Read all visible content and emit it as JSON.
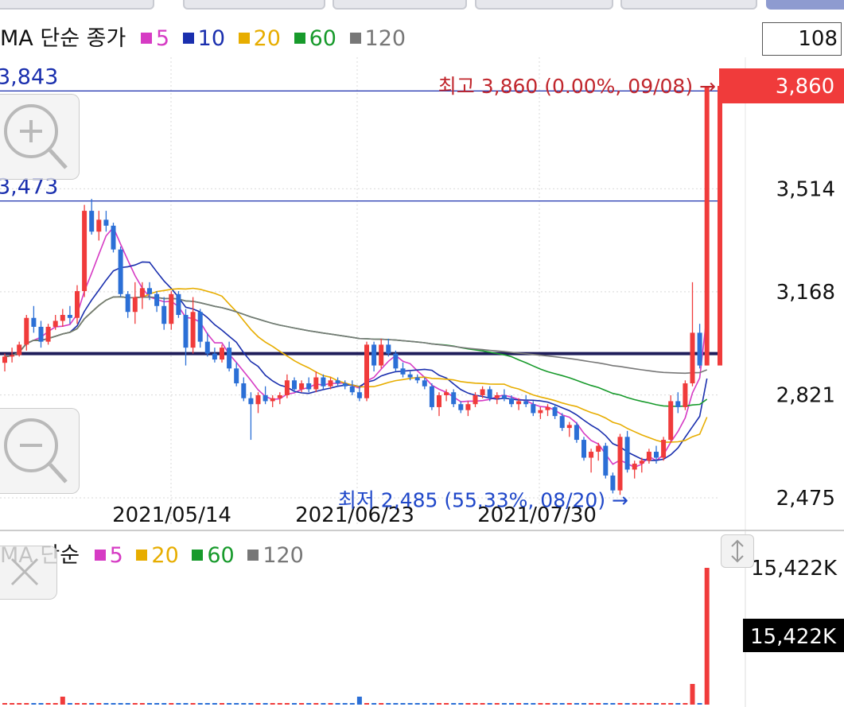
{
  "main_legend": {
    "title": "MA 단순 종가",
    "items": [
      {
        "label": "5",
        "color": "#d63bc4"
      },
      {
        "label": "10",
        "color": "#1a2fae"
      },
      {
        "label": "20",
        "color": "#e7ad00"
      },
      {
        "label": "60",
        "color": "#179a2b"
      },
      {
        "label": "120",
        "color": "#777777"
      }
    ]
  },
  "volume_legend": {
    "title": "MA 단순",
    "items": [
      {
        "label": "5",
        "color": "#d63bc4"
      },
      {
        "label": "20",
        "color": "#e7ad00"
      },
      {
        "label": "60",
        "color": "#179a2b"
      },
      {
        "label": "120",
        "color": "#777777"
      }
    ]
  },
  "count_box": "108",
  "icons": [
    "zoom-in-icon",
    "zoom-out-icon",
    "close-icon",
    "scroll-updown-icon"
  ],
  "chart_data": [
    {
      "type": "candlestick",
      "ylim": [
        2470,
        3880
      ],
      "y_ticks": [
        "2,475",
        "2,821",
        "3,168",
        "3,514"
      ],
      "x_tick_labels": [
        "2021/05/14",
        "2021/06/23",
        "2021/07/30"
      ],
      "current_price_label": "3,860",
      "high_annotation": "최고 3,860 (0.00%, 09/08) →",
      "low_annotation": "최저 2,485 (55.33%, 08/20) →",
      "left_price_labels": [
        "3,843",
        "3,473"
      ],
      "hlines": [
        {
          "value": 3843,
          "color": "#1a2fae"
        },
        {
          "value": 3473,
          "color": "#1a2fae"
        },
        {
          "value": 2960,
          "color": "#1f1d5a"
        }
      ],
      "candles": [
        [
          2929,
          2960,
          2900,
          2950
        ],
        [
          2950,
          2980,
          2930,
          2955
        ],
        [
          2955,
          3000,
          2950,
          2990
        ],
        [
          2990,
          3090,
          2970,
          3080
        ],
        [
          3080,
          3120,
          3030,
          3050
        ],
        [
          3050,
          3070,
          2980,
          3000
        ],
        [
          3000,
          3060,
          2990,
          3050
        ],
        [
          3050,
          3090,
          3040,
          3070
        ],
        [
          3070,
          3110,
          3050,
          3090
        ],
        [
          3090,
          3120,
          3060,
          3080
        ],
        [
          3080,
          3190,
          3060,
          3170
        ],
        [
          3170,
          3460,
          3150,
          3440
        ],
        [
          3440,
          3480,
          3360,
          3370
        ],
        [
          3370,
          3440,
          3340,
          3410
        ],
        [
          3410,
          3440,
          3370,
          3390
        ],
        [
          3390,
          3400,
          3300,
          3310
        ],
        [
          3310,
          3320,
          3150,
          3160
        ],
        [
          3160,
          3170,
          3080,
          3100
        ],
        [
          3100,
          3200,
          3060,
          3150
        ],
        [
          3150,
          3200,
          3110,
          3180
        ],
        [
          3180,
          3200,
          3140,
          3160
        ],
        [
          3160,
          3170,
          3100,
          3120
        ],
        [
          3120,
          3150,
          3040,
          3060
        ],
        [
          3060,
          3170,
          3040,
          3160
        ],
        [
          3160,
          3170,
          3080,
          3090
        ],
        [
          3090,
          3110,
          2920,
          2980
        ],
        [
          2980,
          3150,
          2960,
          3100
        ],
        [
          3100,
          3110,
          2980,
          3000
        ],
        [
          3000,
          3030,
          2950,
          2960
        ],
        [
          2960,
          2980,
          2930,
          2940
        ],
        [
          2940,
          2990,
          2930,
          2980
        ],
        [
          2980,
          3000,
          2900,
          2910
        ],
        [
          2910,
          2930,
          2850,
          2860
        ],
        [
          2860,
          2880,
          2800,
          2810
        ],
        [
          2810,
          2830,
          2670,
          2790
        ],
        [
          2790,
          2830,
          2760,
          2820
        ],
        [
          2820,
          2850,
          2790,
          2800
        ],
        [
          2800,
          2820,
          2780,
          2810
        ],
        [
          2810,
          2830,
          2790,
          2820
        ],
        [
          2820,
          2890,
          2810,
          2870
        ],
        [
          2870,
          2880,
          2830,
          2840
        ],
        [
          2840,
          2870,
          2830,
          2860
        ],
        [
          2860,
          2880,
          2830,
          2840
        ],
        [
          2840,
          2900,
          2830,
          2880
        ],
        [
          2880,
          2890,
          2840,
          2850
        ],
        [
          2850,
          2880,
          2840,
          2870
        ],
        [
          2870,
          2880,
          2850,
          2860
        ],
        [
          2860,
          2870,
          2840,
          2850
        ],
        [
          2850,
          2870,
          2820,
          2830
        ],
        [
          2830,
          2850,
          2800,
          2810
        ],
        [
          2810,
          3000,
          2800,
          2990
        ],
        [
          2990,
          3000,
          2900,
          2920
        ],
        [
          2920,
          3010,
          2910,
          2990
        ],
        [
          2990,
          3010,
          2950,
          2960
        ],
        [
          2960,
          2970,
          2900,
          2910
        ],
        [
          2910,
          2930,
          2880,
          2890
        ],
        [
          2890,
          2900,
          2870,
          2880
        ],
        [
          2880,
          2890,
          2860,
          2870
        ],
        [
          2870,
          2880,
          2840,
          2850
        ],
        [
          2850,
          2860,
          2770,
          2780
        ],
        [
          2780,
          2830,
          2750,
          2820
        ],
        [
          2820,
          2840,
          2800,
          2830
        ],
        [
          2830,
          2840,
          2780,
          2790
        ],
        [
          2790,
          2800,
          2760,
          2770
        ],
        [
          2770,
          2800,
          2750,
          2790
        ],
        [
          2790,
          2830,
          2780,
          2820
        ],
        [
          2820,
          2850,
          2810,
          2840
        ],
        [
          2840,
          2850,
          2800,
          2810
        ],
        [
          2810,
          2830,
          2790,
          2820
        ],
        [
          2820,
          2840,
          2800,
          2810
        ],
        [
          2810,
          2820,
          2780,
          2790
        ],
        [
          2790,
          2810,
          2770,
          2800
        ],
        [
          2800,
          2820,
          2780,
          2790
        ],
        [
          2790,
          2800,
          2750,
          2760
        ],
        [
          2760,
          2780,
          2740,
          2770
        ],
        [
          2770,
          2790,
          2750,
          2780
        ],
        [
          2780,
          2790,
          2740,
          2750
        ],
        [
          2750,
          2760,
          2700,
          2710
        ],
        [
          2710,
          2730,
          2680,
          2720
        ],
        [
          2720,
          2730,
          2660,
          2670
        ],
        [
          2670,
          2680,
          2600,
          2610
        ],
        [
          2610,
          2640,
          2560,
          2630
        ],
        [
          2630,
          2660,
          2600,
          2650
        ],
        [
          2650,
          2660,
          2540,
          2550
        ],
        [
          2550,
          2560,
          2490,
          2500
        ],
        [
          2500,
          2690,
          2485,
          2680
        ],
        [
          2680,
          2700,
          2560,
          2570
        ],
        [
          2570,
          2600,
          2540,
          2590
        ],
        [
          2590,
          2610,
          2560,
          2600
        ],
        [
          2600,
          2640,
          2590,
          2630
        ],
        [
          2630,
          2650,
          2590,
          2610
        ],
        [
          2610,
          2680,
          2600,
          2670
        ],
        [
          2670,
          2820,
          2660,
          2800
        ],
        [
          2800,
          2830,
          2760,
          2780
        ],
        [
          2780,
          2870,
          2770,
          2860
        ],
        [
          2860,
          3200,
          2850,
          3030
        ],
        [
          3030,
          3060,
          2910,
          2920
        ],
        [
          2920,
          3860,
          2920,
          3860
        ]
      ],
      "ma_series": [
        {
          "period": 5,
          "color": "#d63bc4"
        },
        {
          "period": 10,
          "color": "#1a2fae"
        },
        {
          "period": 20,
          "color": "#e7ad00"
        },
        {
          "period": 60,
          "color": "#179a2b"
        },
        {
          "period": 120,
          "color": "#777777"
        }
      ]
    },
    {
      "type": "bar",
      "title": "volume",
      "axis_labels": [
        "15,422K",
        "15,422K"
      ],
      "current_volume_label": "15,422K"
    }
  ]
}
